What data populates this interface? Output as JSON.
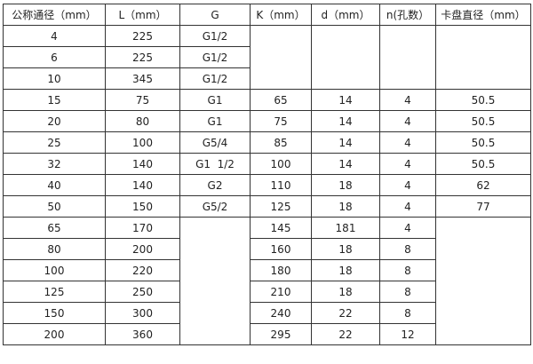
{
  "table": {
    "headers": [
      "公称通径（mm）",
      "L（mm）",
      "G",
      "K（mm）",
      "d（mm）",
      "n(孔数）",
      "卡盘直径（mm）"
    ],
    "rows": [
      [
        "4",
        "225",
        "G1/2",
        "",
        "",
        "",
        ""
      ],
      [
        "6",
        "225",
        "G1/2",
        null,
        null,
        null,
        null
      ],
      [
        "10",
        "345",
        "G1/2",
        null,
        null,
        null,
        null
      ],
      [
        "15",
        "75",
        "G1",
        "65",
        "14",
        "4",
        "50.5"
      ],
      [
        "20",
        "80",
        "G1",
        "75",
        "14",
        "4",
        "50.5"
      ],
      [
        "25",
        "100",
        "G5/4",
        "85",
        "14",
        "4",
        "50.5"
      ],
      [
        "32",
        "140",
        "G1  1/2",
        "100",
        "14",
        "4",
        "50.5"
      ],
      [
        "40",
        "140",
        "G2",
        "110",
        "18",
        "4",
        "62"
      ],
      [
        "50",
        "150",
        "G5/2",
        "125",
        "18",
        "4",
        "77"
      ],
      [
        "65",
        "170",
        "",
        "145",
        "181",
        "4",
        ""
      ],
      [
        "80",
        "200",
        null,
        "160",
        "18",
        "8",
        null
      ],
      [
        "100",
        "220",
        null,
        "180",
        "18",
        "8",
        null
      ],
      [
        "125",
        "250",
        null,
        "210",
        "18",
        "8",
        null
      ],
      [
        "150",
        "300",
        null,
        "240",
        "22",
        "8",
        null
      ],
      [
        "200",
        "360",
        null,
        "295",
        "22",
        "12",
        null
      ]
    ]
  }
}
